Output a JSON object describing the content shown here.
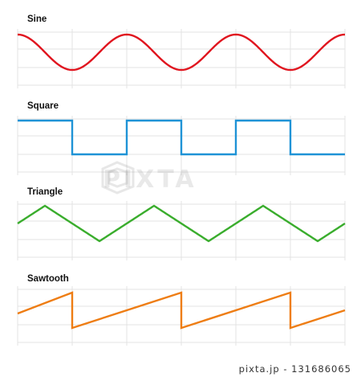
{
  "waves": [
    {
      "id": "sine",
      "label": "Sine",
      "color": "#e0151f"
    },
    {
      "id": "square",
      "label": "Square",
      "color": "#1f93d6"
    },
    {
      "id": "triangle",
      "label": "Triangle",
      "color": "#3aad2d"
    },
    {
      "id": "sawtooth",
      "label": "Sawtooth",
      "color": "#ee7d14"
    }
  ],
  "grid_color": "#e3e3e3",
  "watermark": {
    "text": "PIXTA"
  },
  "footer": {
    "text": "pixta.jp - 131686065"
  }
}
